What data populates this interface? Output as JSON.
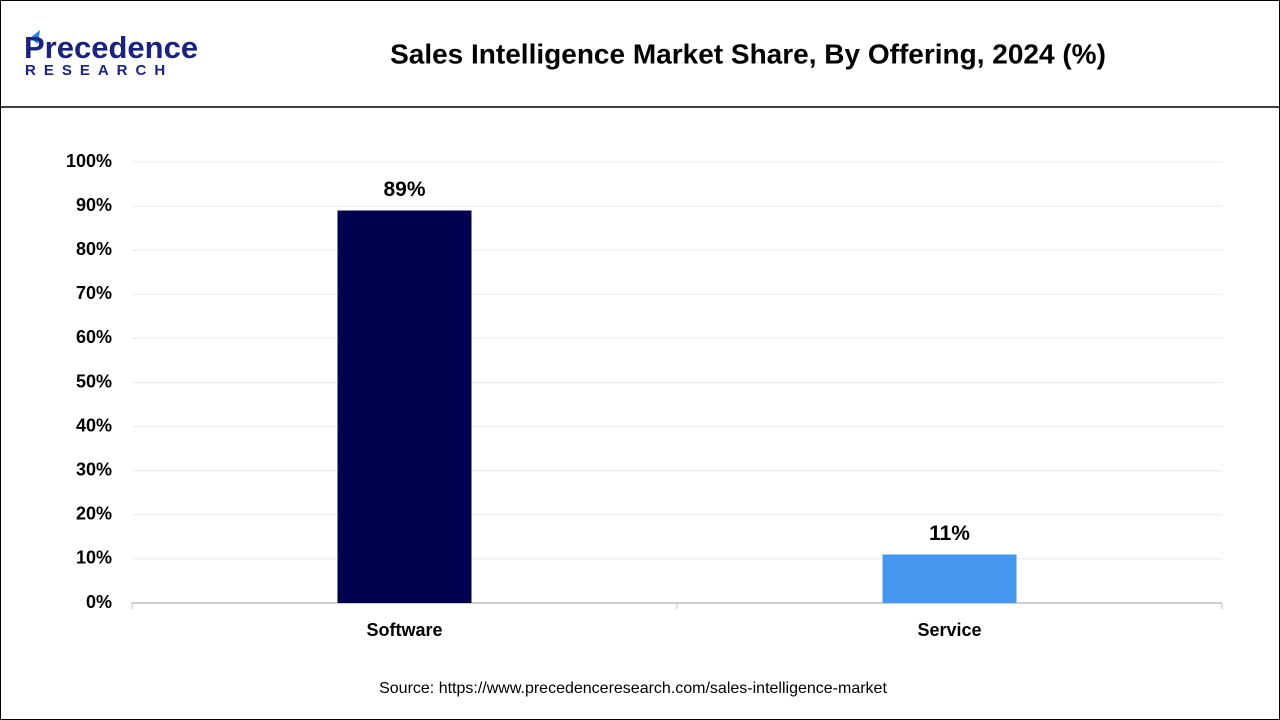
{
  "logo": {
    "name": "Precedence",
    "tagline": "RESEARCH"
  },
  "chart_data": {
    "type": "bar",
    "title": "Sales Intelligence Market Share, By Offering, 2024 (%)",
    "categories": [
      "Software",
      "Service"
    ],
    "values": [
      89,
      11
    ],
    "value_labels": [
      "89%",
      "11%"
    ],
    "colors": [
      "#00004f",
      "#4596ee"
    ],
    "ylim": [
      0,
      100
    ],
    "yticks": [
      {
        "value": 0,
        "label": "0%"
      },
      {
        "value": 10,
        "label": "10%"
      },
      {
        "value": 20,
        "label": "20%"
      },
      {
        "value": 30,
        "label": "30%"
      },
      {
        "value": 40,
        "label": "40%"
      },
      {
        "value": 50,
        "label": "50%"
      },
      {
        "value": 60,
        "label": "60%"
      },
      {
        "value": 70,
        "label": "70%"
      },
      {
        "value": 80,
        "label": "80%"
      },
      {
        "value": 90,
        "label": "90%"
      },
      {
        "value": 100,
        "label": "100%"
      }
    ],
    "grid": true,
    "source": "Source: https://www.precedenceresearch.com/sales-intelligence-market"
  }
}
